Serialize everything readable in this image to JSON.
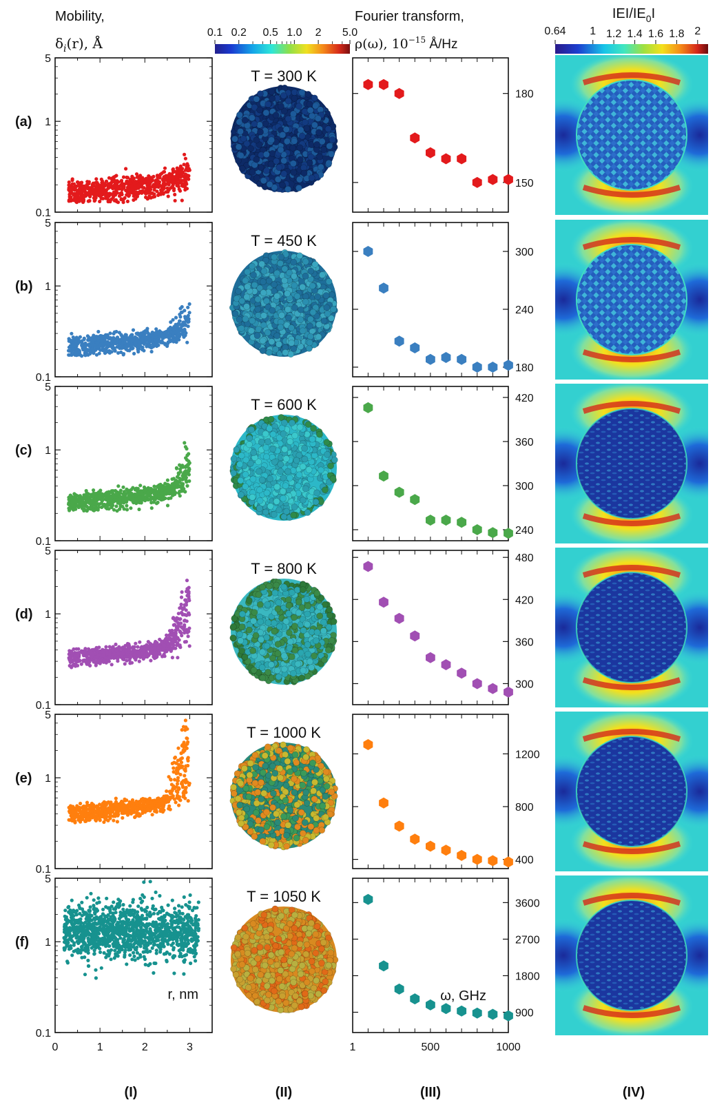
{
  "headers": {
    "mobility_line1": "Mobility,",
    "mobility_line2": "δ",
    "mobility_sub": "i",
    "mobility_rest": "(r), Å",
    "fourier_line1": "Fourier transform,",
    "fourier_line2": "ρ(ω), 10",
    "fourier_sup": "−15",
    "fourier_rest": " Å/Hz",
    "field_title": "IEI/IE",
    "field_sub": "0",
    "field_rest": "I"
  },
  "colorbar_mobility": {
    "ticks": [
      "0.1",
      "0.2",
      "0.5",
      "1.0",
      "2",
      "5.0"
    ]
  },
  "colorbar_field": {
    "ticks": [
      "0.64",
      "1",
      "1.2",
      "1.4",
      "1.6",
      "1.8",
      "2"
    ]
  },
  "column_labels": [
    "(I)",
    "(II)",
    "(III)",
    "(IV)"
  ],
  "axis_text": {
    "r_label": "r, nm",
    "omega_label": "ω, GHz",
    "mob_yticks": [
      "5",
      "1",
      "0.1"
    ],
    "mob_xticks": [
      "0",
      "1",
      "2",
      "3"
    ],
    "fourier_xticks": [
      "1",
      "500",
      "1000"
    ]
  },
  "chart_data": [
    {
      "type": "scatter",
      "row": "(a)",
      "temperature_label": "T = 300 K",
      "color": "#e31a1c",
      "title": "",
      "xlabel": "",
      "ylabel": "",
      "xlim": [
        0,
        3.5
      ],
      "ylim": [
        0.1,
        5
      ],
      "yscale": "log",
      "r_start": 0.3,
      "r_end": 3.0,
      "base": 0.16,
      "spread": 0.03,
      "tail": 0.1
    },
    {
      "type": "scatter",
      "row": "(b)",
      "temperature_label": "T = 450 K",
      "color": "#3a7fc0",
      "xlim": [
        0,
        3.5
      ],
      "ylim": [
        0.1,
        5
      ],
      "yscale": "log",
      "r_start": 0.3,
      "r_end": 3.0,
      "base": 0.21,
      "spread": 0.03,
      "tail": 0.2
    },
    {
      "type": "scatter",
      "row": "(c)",
      "temperature_label": "T = 600 K",
      "color": "#4aa84a",
      "xlim": [
        0,
        3.5
      ],
      "ylim": [
        0.1,
        5
      ],
      "yscale": "log",
      "r_start": 0.3,
      "r_end": 3.0,
      "base": 0.26,
      "spread": 0.035,
      "tail": 0.4
    },
    {
      "type": "scatter",
      "row": "(d)",
      "temperature_label": "T = 800 K",
      "color": "#a14fb3",
      "xlim": [
        0,
        3.5
      ],
      "ylim": [
        0.1,
        5
      ],
      "yscale": "log",
      "r_start": 0.3,
      "r_end": 3.0,
      "base": 0.32,
      "spread": 0.04,
      "tail": 1.0
    },
    {
      "type": "scatter",
      "row": "(e)",
      "temperature_label": "T = 1000 K",
      "color": "#ff7f0e",
      "xlim": [
        0,
        3.5
      ],
      "ylim": [
        0.1,
        5
      ],
      "yscale": "log",
      "r_start": 0.3,
      "r_end": 3.0,
      "base": 0.4,
      "spread": 0.05,
      "tail": 2.0
    },
    {
      "type": "scatter",
      "row": "(f)",
      "temperature_label": "T = 1050 K",
      "color": "#17928f",
      "xlim": [
        0,
        3.5
      ],
      "ylim": [
        0.1,
        5
      ],
      "yscale": "log",
      "r_start": 0.2,
      "r_end": 3.2,
      "base": 1.3,
      "spread": 0.5,
      "tail": 0
    }
  ],
  "fourier_data": [
    {
      "type": "scatter",
      "row": "(a)",
      "color": "#e31a1c",
      "xlim": [
        1,
        1000
      ],
      "ylim": [
        140,
        192
      ],
      "yticks": [
        "180",
        "150"
      ],
      "x": [
        100,
        200,
        300,
        400,
        500,
        600,
        700,
        800,
        900,
        1000
      ],
      "y": [
        183,
        183,
        180,
        165,
        160,
        158,
        158,
        150,
        151,
        151
      ]
    },
    {
      "type": "scatter",
      "row": "(b)",
      "color": "#3a7fc0",
      "xlim": [
        1,
        1000
      ],
      "ylim": [
        170,
        330
      ],
      "yticks": [
        "300",
        "240",
        "180"
      ],
      "x": [
        100,
        200,
        300,
        400,
        500,
        600,
        700,
        800,
        900,
        1000
      ],
      "y": [
        300,
        262,
        207,
        200,
        188,
        190,
        188,
        180,
        180,
        182
      ]
    },
    {
      "type": "scatter",
      "row": "(c)",
      "color": "#4aa84a",
      "xlim": [
        1,
        1000
      ],
      "ylim": [
        225,
        435
      ],
      "yticks": [
        "420",
        "360",
        "300",
        "240"
      ],
      "x": [
        100,
        200,
        300,
        400,
        500,
        600,
        700,
        800,
        900,
        1000
      ],
      "y": [
        406,
        313,
        291,
        281,
        253,
        253,
        250,
        240,
        236,
        235
      ]
    },
    {
      "type": "scatter",
      "row": "(d)",
      "color": "#a14fb3",
      "xlim": [
        1,
        1000
      ],
      "ylim": [
        270,
        490
      ],
      "yticks": [
        "480",
        "420",
        "360",
        "300"
      ],
      "x": [
        100,
        200,
        300,
        400,
        500,
        600,
        700,
        800,
        900,
        1000
      ],
      "y": [
        467,
        416,
        393,
        368,
        337,
        327,
        315,
        300,
        293,
        288
      ]
    },
    {
      "type": "scatter",
      "row": "(e)",
      "color": "#ff7f0e",
      "xlim": [
        1,
        1000
      ],
      "ylim": [
        330,
        1500
      ],
      "yticks": [
        "1200",
        "800",
        "400"
      ],
      "x": [
        100,
        200,
        300,
        400,
        500,
        600,
        700,
        800,
        900,
        1000
      ],
      "y": [
        1270,
        828,
        652,
        553,
        500,
        470,
        430,
        400,
        390,
        380
      ]
    },
    {
      "type": "scatter",
      "row": "(f)",
      "color": "#17928f",
      "xlim": [
        1,
        1000
      ],
      "ylim": [
        400,
        4200
      ],
      "yticks": [
        "3600",
        "2700",
        "1800",
        "900"
      ],
      "x": [
        100,
        200,
        300,
        400,
        500,
        600,
        700,
        800,
        900,
        1000
      ],
      "y": [
        3680,
        2040,
        1470,
        1230,
        1080,
        990,
        930,
        880,
        850,
        810
      ]
    }
  ]
}
